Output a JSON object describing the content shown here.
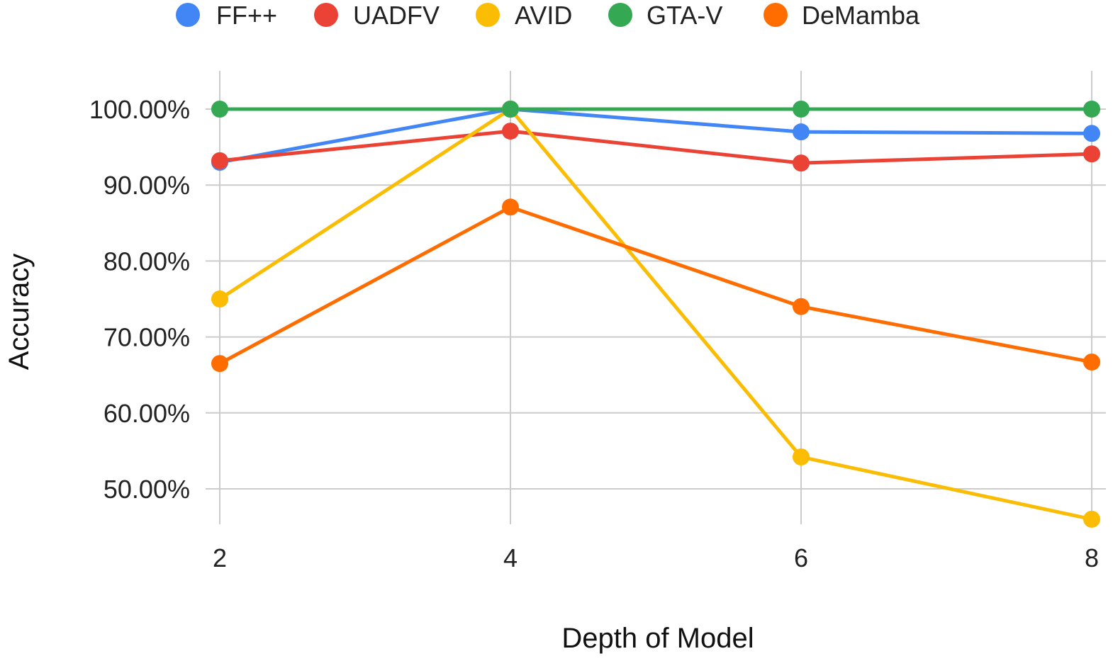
{
  "chart_data": {
    "type": "line",
    "title": "",
    "xlabel": "Depth of Model",
    "ylabel": "Accuracy",
    "x": [
      2,
      4,
      6,
      8
    ],
    "x_tick_labels": [
      "2",
      "4",
      "6",
      "8"
    ],
    "ylim": [
      45.5,
      105
    ],
    "y_ticks": [
      50,
      60,
      70,
      80,
      90,
      100
    ],
    "y_tick_labels": [
      "50.00%",
      "60.00%",
      "70.00%",
      "80.00%",
      "90.00%",
      "100.00%"
    ],
    "grid": true,
    "legend_position": "top",
    "series": [
      {
        "name": "FF++",
        "color": "#4285F4",
        "values": [
          93.0,
          100.0,
          97.0,
          96.8
        ]
      },
      {
        "name": "UADFV",
        "color": "#EA4335",
        "values": [
          93.2,
          97.1,
          92.9,
          94.1
        ]
      },
      {
        "name": "AVID",
        "color": "#FBBC04",
        "values": [
          75.0,
          100.0,
          54.2,
          46.0
        ]
      },
      {
        "name": "GTA-V",
        "color": "#34A853",
        "values": [
          100.0,
          100.0,
          100.0,
          100.0
        ]
      },
      {
        "name": "DeMamba",
        "color": "#FF6D01",
        "values": [
          66.5,
          87.1,
          74.0,
          66.7
        ]
      }
    ]
  }
}
